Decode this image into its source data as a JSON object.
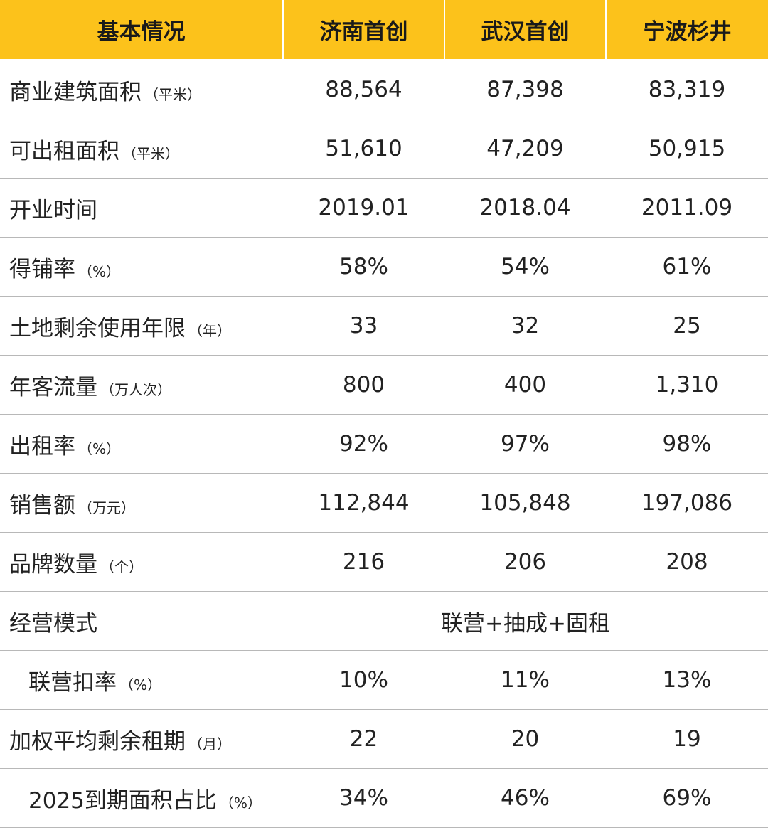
{
  "header": [
    "基本情况",
    "济南首创",
    "武汉首创",
    "宁波杉井"
  ],
  "rows": [
    {
      "label": "商业建筑面积",
      "unit": "（平米）",
      "values": [
        "88,564",
        "87,398",
        "83,319"
      ]
    },
    {
      "label": "可出租面积",
      "unit": "（平米）",
      "values": [
        "51,610",
        "47,209",
        "50,915"
      ]
    },
    {
      "label": "开业时间",
      "unit": "",
      "values": [
        "2019.01",
        "2018.04",
        "2011.09"
      ]
    },
    {
      "label": "得铺率",
      "unit": "（%）",
      "values": [
        "58%",
        "54%",
        "61%"
      ]
    },
    {
      "label": "土地剩余使用年限",
      "unit": "（年）",
      "values": [
        "33",
        "32",
        "25"
      ]
    },
    {
      "label": "年客流量",
      "unit": "（万人次）",
      "values": [
        "800",
        "400",
        "1,310"
      ]
    },
    {
      "label": "出租率",
      "unit": "（%）",
      "values": [
        "92%",
        "97%",
        "98%"
      ]
    },
    {
      "label": "销售额",
      "unit": "（万元）",
      "values": [
        "112,844",
        "105,848",
        "197,086"
      ]
    },
    {
      "label": "品牌数量",
      "unit": "（个）",
      "values": [
        "216",
        "206",
        "208"
      ]
    },
    {
      "label": "经营模式",
      "unit": "",
      "merged": "联营+抽成+固租"
    },
    {
      "label": "联营扣率",
      "unit": "（%）",
      "indent": true,
      "values": [
        "10%",
        "11%",
        "13%"
      ]
    },
    {
      "label": "加权平均剩余租期",
      "unit": "（月）",
      "values": [
        "22",
        "20",
        "19"
      ]
    },
    {
      "label": "2025到期面积占比",
      "unit": "（%）",
      "indent": true,
      "values": [
        "34%",
        "46%",
        "69%"
      ]
    }
  ],
  "colors": {
    "header_bg": "#fcc21b",
    "row_border": "#b8b8b8"
  }
}
